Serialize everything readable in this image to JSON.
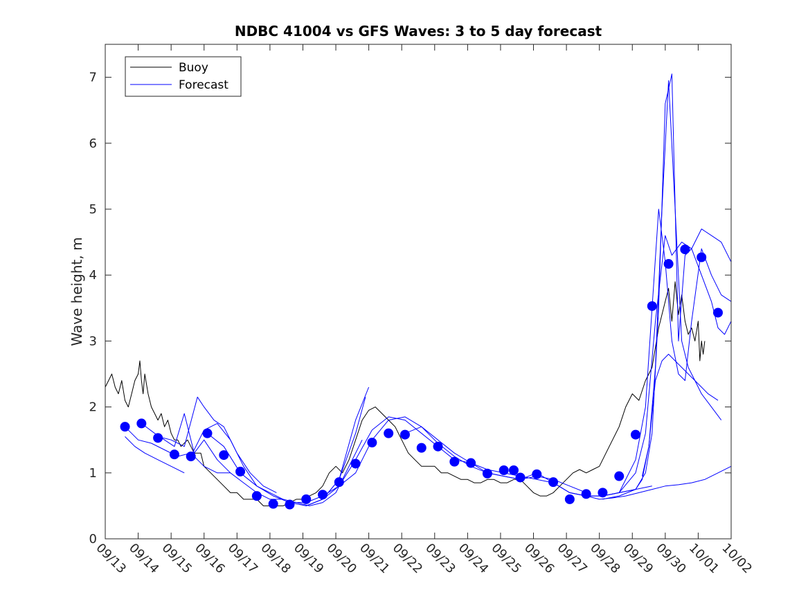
{
  "chart_data": {
    "type": "line",
    "title": "NDBC 41004 vs GFS Waves: 3 to 5 day forecast",
    "xlabel": "",
    "ylabel": "Wave height, m",
    "xlim": [
      0,
      19
    ],
    "ylim": [
      0,
      7.5
    ],
    "categories": [
      "09/13",
      "09/14",
      "09/15",
      "09/16",
      "09/17",
      "09/18",
      "09/19",
      "09/20",
      "09/21",
      "09/22",
      "09/23",
      "09/24",
      "09/25",
      "09/26",
      "09/27",
      "09/28",
      "09/29",
      "09/30",
      "10/01",
      "10/02"
    ],
    "y_ticks": [
      0,
      1,
      2,
      3,
      4,
      5,
      6,
      7
    ],
    "legend": {
      "position": "top-left",
      "entries": [
        "Buoy",
        "Forecast"
      ]
    },
    "colors": {
      "buoy": "#000000",
      "forecast": "#0000ff",
      "markers": "#0000ff"
    },
    "series": [
      {
        "name": "Buoy",
        "color": "#000000",
        "x": [
          0,
          0.1,
          0.2,
          0.3,
          0.4,
          0.5,
          0.6,
          0.7,
          0.8,
          0.9,
          1.0,
          1.05,
          1.1,
          1.15,
          1.2,
          1.3,
          1.4,
          1.5,
          1.6,
          1.7,
          1.8,
          1.9,
          2.0,
          2.1,
          2.2,
          2.3,
          2.5,
          2.7,
          2.9,
          3.0,
          3.2,
          3.4,
          3.6,
          3.8,
          4.0,
          4.2,
          4.4,
          4.6,
          4.8,
          5.0,
          5.2,
          5.4,
          5.6,
          5.8,
          6.0,
          6.2,
          6.4,
          6.6,
          6.8,
          7.0,
          7.2,
          7.4,
          7.6,
          7.8,
          8.0,
          8.2,
          8.4,
          8.6,
          8.8,
          9.0,
          9.2,
          9.4,
          9.6,
          9.8,
          10.0,
          10.2,
          10.4,
          10.6,
          10.8,
          11.0,
          11.2,
          11.4,
          11.6,
          11.8,
          12.0,
          12.2,
          12.4,
          12.6,
          12.8,
          13.0,
          13.2,
          13.4,
          13.6,
          13.8,
          14.0,
          14.2,
          14.4,
          14.6,
          14.8,
          15.0,
          15.2,
          15.4,
          15.6,
          15.8,
          16.0,
          16.2,
          16.4,
          16.6,
          16.8,
          17.0,
          17.1,
          17.2,
          17.3,
          17.4,
          17.5,
          17.6,
          17.7,
          17.8,
          17.9,
          18.0,
          18.05,
          18.1,
          18.15,
          18.2
        ],
        "values": [
          2.3,
          2.4,
          2.5,
          2.3,
          2.2,
          2.4,
          2.1,
          2.0,
          2.2,
          2.4,
          2.5,
          2.7,
          2.4,
          2.2,
          2.5,
          2.2,
          2.0,
          1.9,
          1.8,
          1.9,
          1.7,
          1.8,
          1.6,
          1.5,
          1.5,
          1.4,
          1.5,
          1.3,
          1.3,
          1.1,
          1.0,
          0.9,
          0.8,
          0.7,
          0.7,
          0.6,
          0.6,
          0.6,
          0.5,
          0.5,
          0.5,
          0.5,
          0.55,
          0.6,
          0.6,
          0.65,
          0.7,
          0.8,
          1.0,
          1.1,
          1.0,
          1.2,
          1.5,
          1.8,
          1.95,
          2.0,
          1.9,
          1.8,
          1.7,
          1.5,
          1.3,
          1.2,
          1.1,
          1.1,
          1.1,
          1.0,
          1.0,
          0.95,
          0.9,
          0.9,
          0.85,
          0.85,
          0.9,
          0.9,
          0.85,
          0.85,
          0.9,
          0.9,
          0.8,
          0.7,
          0.65,
          0.65,
          0.7,
          0.8,
          0.9,
          1.0,
          1.05,
          1.0,
          1.05,
          1.1,
          1.3,
          1.5,
          1.7,
          2.0,
          2.2,
          2.1,
          2.4,
          2.6,
          3.2,
          3.6,
          3.8,
          3.3,
          3.9,
          3.4,
          3.7,
          3.3,
          3.1,
          3.2,
          3.0,
          3.3,
          2.7,
          3.0,
          2.8,
          3.0
        ]
      },
      {
        "name": "Forecast",
        "color": "#0000ff",
        "x": [
          0.6,
          1.0,
          1.4,
          1.8,
          2.2,
          2.6,
          3.0,
          3.4,
          3.8,
          4.2,
          4.6,
          5.0,
          5.4
        ],
        "values": [
          1.7,
          1.5,
          1.45,
          1.35,
          1.25,
          1.3,
          1.1,
          1.0,
          1.0,
          0.85,
          0.7,
          0.6,
          0.6
        ]
      },
      {
        "name": "Forecast",
        "color": "#0000ff",
        "x": [
          0.6,
          0.9,
          1.2,
          1.6,
          2.0,
          2.4
        ],
        "values": [
          1.55,
          1.4,
          1.3,
          1.2,
          1.1,
          1.0
        ]
      },
      {
        "name": "Forecast",
        "color": "#0000ff",
        "x": [
          1.1,
          1.5,
          1.8,
          2.1,
          2.4,
          2.7,
          3.0,
          3.4,
          3.8
        ],
        "values": [
          1.75,
          1.6,
          1.5,
          1.4,
          1.9,
          1.3,
          1.5,
          1.2,
          1.0
        ]
      },
      {
        "name": "Forecast",
        "color": "#0000ff",
        "x": [
          1.6,
          2.0,
          2.4,
          2.8,
          3.0,
          3.3,
          3.6,
          4.0,
          4.4,
          4.8,
          5.2
        ],
        "values": [
          1.55,
          1.5,
          1.4,
          2.15,
          2.0,
          1.8,
          1.7,
          1.3,
          1.0,
          0.8,
          0.7
        ]
      },
      {
        "name": "Forecast",
        "color": "#0000ff",
        "x": [
          2.6,
          3.0,
          3.4,
          3.8,
          4.2,
          4.6,
          5.0,
          5.4,
          5.8,
          6.2,
          6.6,
          7.0,
          7.4,
          7.8
        ],
        "values": [
          1.25,
          1.65,
          1.75,
          1.5,
          1.1,
          0.8,
          0.7,
          0.6,
          0.55,
          0.5,
          0.55,
          0.7,
          1.1,
          1.5
        ]
      },
      {
        "name": "Forecast",
        "color": "#0000ff",
        "x": [
          3.1,
          3.6,
          4.1,
          4.6,
          5.1,
          5.6,
          6.1,
          6.6,
          7.1,
          7.6,
          8.1,
          8.6,
          9.1,
          9.6,
          10.1,
          10.6,
          11.1
        ],
        "values": [
          1.6,
          1.4,
          1.0,
          0.8,
          0.65,
          0.55,
          0.5,
          0.6,
          0.8,
          1.2,
          1.65,
          1.85,
          1.8,
          1.6,
          1.4,
          1.2,
          1.15
        ]
      },
      {
        "name": "Forecast",
        "color": "#0000ff",
        "x": [
          5.6,
          6.1,
          6.6,
          7.1,
          7.6,
          8.1,
          8.6,
          9.1,
          9.6,
          10.1,
          10.6,
          11.1,
          11.6,
          12.1,
          12.6,
          13.1,
          13.6,
          14.1,
          14.6,
          15.1,
          15.6,
          16.1,
          16.6
        ],
        "values": [
          0.55,
          0.55,
          0.65,
          0.8,
          1.0,
          1.5,
          1.8,
          1.85,
          1.7,
          1.5,
          1.3,
          1.15,
          1.05,
          1.0,
          0.95,
          0.9,
          0.85,
          0.7,
          0.65,
          0.65,
          0.7,
          0.75,
          0.8
        ]
      },
      {
        "name": "Forecast",
        "color": "#0000ff",
        "x": [
          6.6,
          7.1,
          7.6,
          8.0
        ],
        "values": [
          0.6,
          0.9,
          1.8,
          2.3
        ]
      },
      {
        "name": "Forecast",
        "color": "#0000ff",
        "x": [
          6.1,
          6.6,
          7.1,
          7.6,
          7.9
        ],
        "values": [
          0.5,
          0.6,
          0.9,
          1.6,
          2.15
        ]
      },
      {
        "name": "Forecast",
        "color": "#0000ff",
        "x": [
          9.1,
          9.6,
          10.1,
          10.6,
          11.1,
          11.6,
          12.1,
          12.6,
          13.1,
          13.6,
          14.1,
          14.6
        ],
        "values": [
          1.6,
          1.7,
          1.45,
          1.25,
          1.1,
          1.0,
          0.95,
          0.9,
          0.95,
          0.9,
          0.8,
          0.7
        ]
      },
      {
        "name": "Forecast",
        "color": "#0000ff",
        "x": [
          11.1,
          11.6,
          12.1,
          12.6,
          13.1,
          13.6,
          14.1,
          14.6,
          15.1,
          15.6,
          16.1,
          16.4,
          16.7,
          17.0,
          17.2,
          17.5,
          17.8,
          18.1,
          18.4,
          18.7,
          19.0
        ],
        "values": [
          1.15,
          1.0,
          0.95,
          0.9,
          1.0,
          0.85,
          0.7,
          0.65,
          0.65,
          0.7,
          1.0,
          1.6,
          3.3,
          4.6,
          4.3,
          4.5,
          4.4,
          4.7,
          4.6,
          4.5,
          4.2
        ]
      },
      {
        "name": "Forecast",
        "color": "#0000ff",
        "x": [
          14.1,
          14.6,
          15.1,
          15.6,
          16.1,
          16.4,
          16.6,
          16.8,
          17.0,
          17.2,
          17.4,
          17.6,
          17.8,
          18.1,
          18.4,
          18.7,
          19.0
        ],
        "values": [
          0.7,
          0.65,
          0.65,
          0.7,
          1.2,
          2.0,
          3.5,
          5.0,
          4.2,
          3.0,
          2.5,
          2.4,
          3.3,
          4.4,
          4.0,
          3.7,
          3.6
        ]
      },
      {
        "name": "Forecast",
        "color": "#0000ff",
        "x": [
          15.1,
          15.6,
          16.1,
          16.4,
          16.6,
          16.8,
          17.0,
          17.2,
          17.4,
          17.6,
          17.8,
          18.1,
          18.4,
          18.6,
          18.8,
          19.0
        ],
        "values": [
          0.6,
          0.65,
          0.75,
          1.0,
          1.6,
          3.5,
          6.6,
          7.05,
          3.0,
          4.3,
          4.4,
          4.0,
          3.6,
          3.2,
          3.1,
          3.3
        ]
      },
      {
        "name": "Forecast",
        "color": "#0000ff",
        "x": [
          15.1,
          15.6,
          16.1,
          16.3,
          16.5,
          16.7,
          16.9,
          17.1,
          17.3,
          17.5,
          17.7,
          17.9,
          18.1,
          18.4,
          18.7
        ],
        "values": [
          0.65,
          0.7,
          0.75,
          0.9,
          1.4,
          2.6,
          5.0,
          6.95,
          5.0,
          3.0,
          2.6,
          2.4,
          2.2,
          2.0,
          1.8
        ]
      },
      {
        "name": "Forecast",
        "color": "#0000ff",
        "x": [
          16.3,
          16.5,
          16.7,
          16.9,
          17.1,
          17.3,
          17.5,
          17.7,
          17.9,
          18.1,
          18.3,
          18.6
        ],
        "values": [
          0.95,
          1.4,
          2.4,
          2.7,
          2.8,
          2.7,
          2.6,
          2.5,
          2.4,
          2.3,
          2.2,
          2.1
        ]
      },
      {
        "name": "Forecast",
        "color": "#0000ff",
        "x": [
          14.6,
          15.0,
          15.4,
          15.8,
          16.2,
          16.6,
          17.0,
          17.4,
          17.8,
          18.2,
          18.6,
          19.0
        ],
        "values": [
          0.65,
          0.6,
          0.62,
          0.65,
          0.7,
          0.75,
          0.8,
          0.82,
          0.85,
          0.9,
          1.0,
          1.1
        ]
      }
    ],
    "markers": {
      "name": "Forecast points",
      "x": [
        0.6,
        1.1,
        1.6,
        2.1,
        2.6,
        3.1,
        3.6,
        4.1,
        4.6,
        5.1,
        5.6,
        6.1,
        6.6,
        7.1,
        7.6,
        8.1,
        8.6,
        9.1,
        9.6,
        10.1,
        10.6,
        11.1,
        11.6,
        12.1,
        12.4,
        12.6,
        13.1,
        13.6,
        14.1,
        14.6,
        15.1,
        15.6,
        16.1,
        16.6,
        17.1,
        17.6,
        18.1,
        18.6
      ],
      "values": [
        1.7,
        1.75,
        1.53,
        1.28,
        1.25,
        1.6,
        1.27,
        1.02,
        0.65,
        0.53,
        0.52,
        0.6,
        0.67,
        0.86,
        1.14,
        1.46,
        1.6,
        1.58,
        1.38,
        1.4,
        1.17,
        1.15,
        0.99,
        1.04,
        1.04,
        0.93,
        0.98,
        0.86,
        0.6,
        0.68,
        0.7,
        0.95,
        1.58,
        3.53,
        4.17,
        4.39,
        4.27,
        3.43
      ]
    }
  }
}
